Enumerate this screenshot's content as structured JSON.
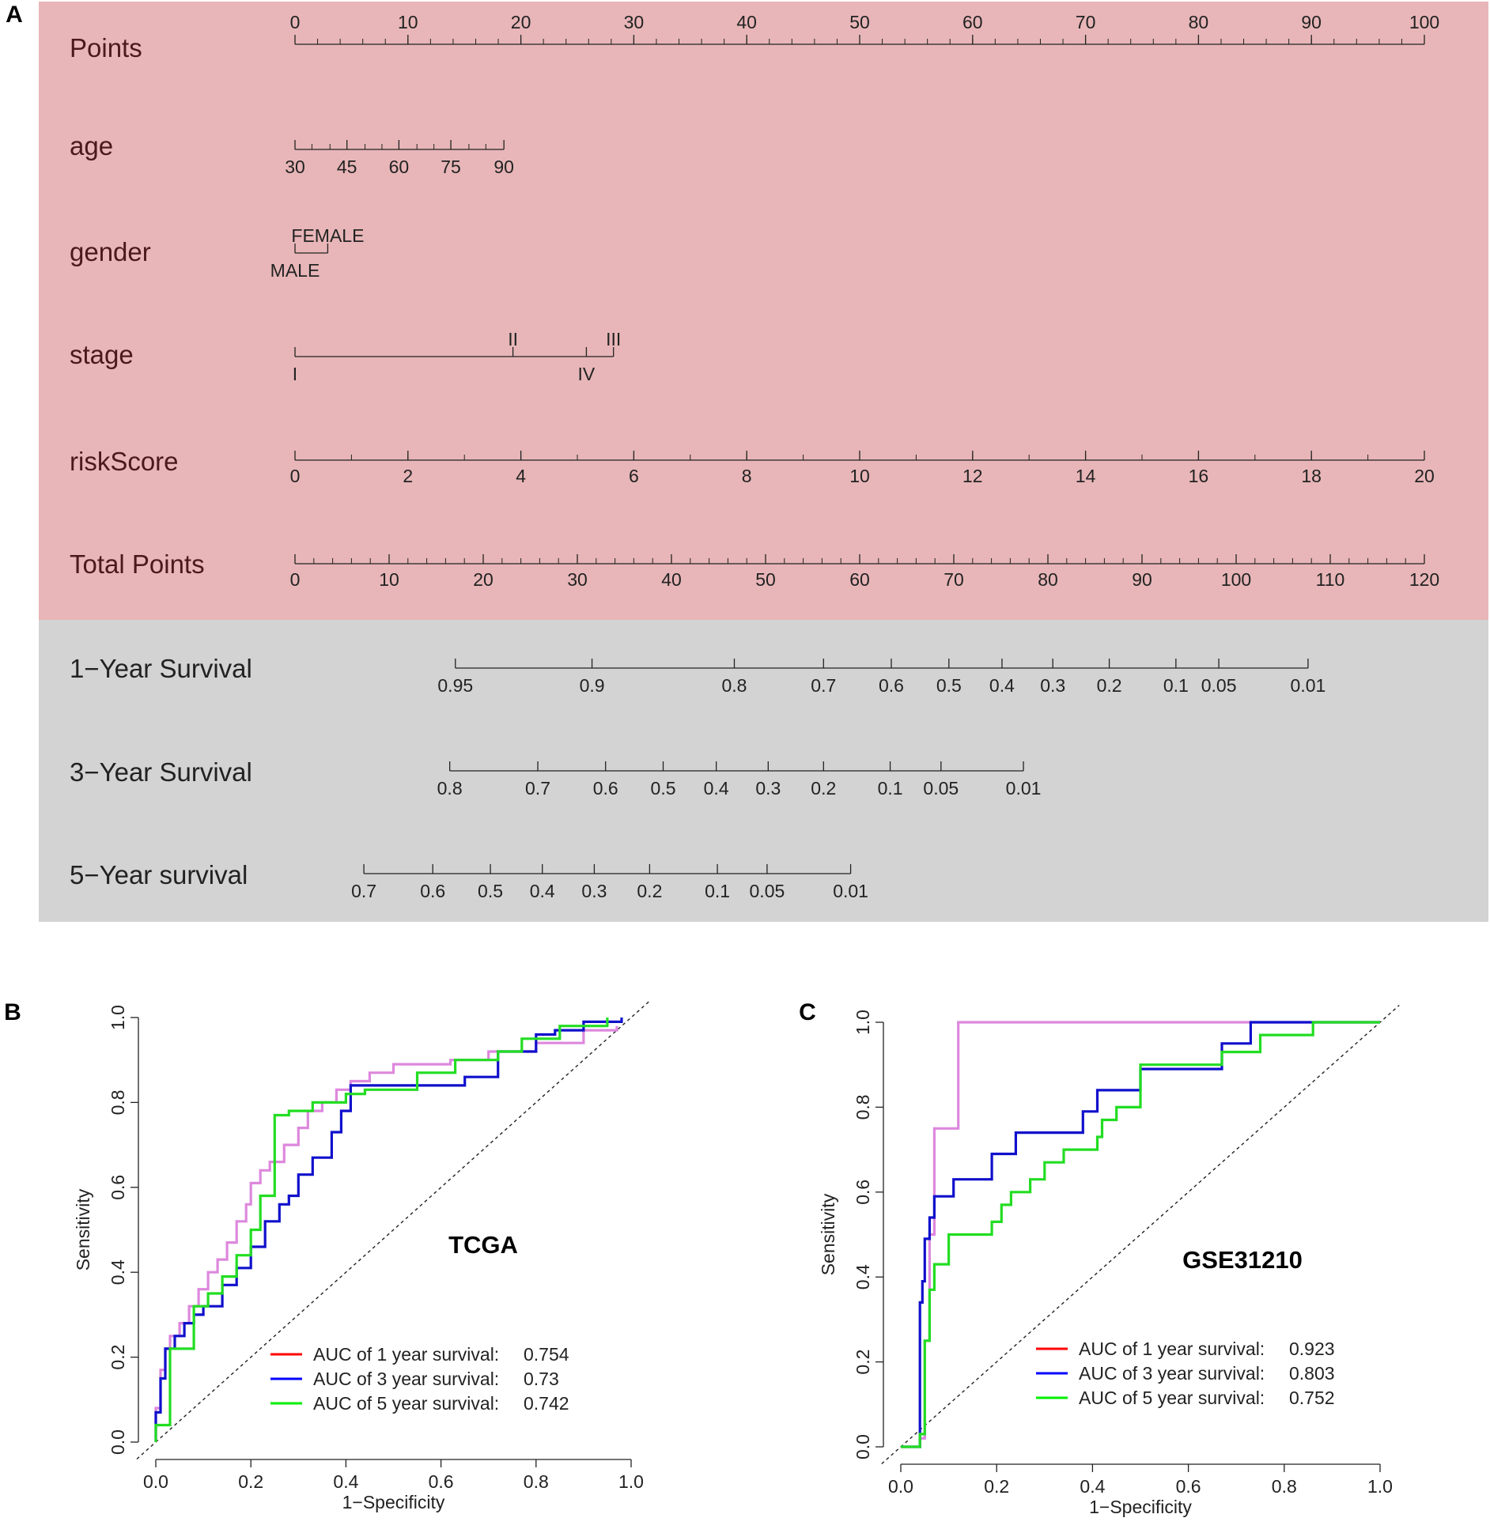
{
  "chart_data": [
    {
      "panel": "A",
      "type": "table",
      "description_type": "nomogram",
      "panel_label": "A",
      "colors": {
        "predictors_background": "#e8b6b8",
        "survival_background": "#d3d3d3",
        "row_label": "#4a1a1a",
        "axis": "#222222"
      },
      "rows": [
        {
          "id": "points",
          "label": "Points",
          "section": "predictors",
          "scale": {
            "from": 0,
            "to": 100
          },
          "ticks": [
            0,
            10,
            20,
            30,
            40,
            50,
            60,
            70,
            80,
            90,
            100
          ],
          "minor_step": 2,
          "label_side": "above",
          "tick_labels": [
            "0",
            "10",
            "20",
            "30",
            "40",
            "50",
            "60",
            "70",
            "80",
            "90",
            "100"
          ]
        },
        {
          "id": "age",
          "label": "age",
          "section": "predictors",
          "ticks": [
            {
              "value": "30",
              "points": 0
            },
            {
              "value": "45",
              "points": 4.6
            },
            {
              "value": "60",
              "points": 9.2
            },
            {
              "value": "75",
              "points": 13.8
            },
            {
              "value": "90",
              "points": 18.5
            }
          ],
          "minor_points": [
            1.5,
            3.1,
            6.2,
            7.7,
            10.8,
            12.3,
            15.4,
            16.9
          ],
          "label_side": "below"
        },
        {
          "id": "gender",
          "label": "gender",
          "section": "predictors",
          "ticks": [
            {
              "value": "FEMALE",
              "points": 2.9,
              "side": "above"
            },
            {
              "value": "MALE",
              "points": 0,
              "side": "below"
            }
          ]
        },
        {
          "id": "stage",
          "label": "stage",
          "section": "predictors",
          "ticks": [
            {
              "value": "I",
              "points": 0,
              "side": "below"
            },
            {
              "value": "II",
              "points": 19.3,
              "side": "above"
            },
            {
              "value": "III",
              "points": 28.2,
              "side": "above"
            },
            {
              "value": "IV",
              "points": 25.8,
              "side": "below"
            }
          ]
        },
        {
          "id": "riskscore",
          "label": "riskScore",
          "section": "predictors",
          "scale": {
            "from": 0,
            "to": 20
          },
          "ticks": [
            0,
            2,
            4,
            6,
            8,
            10,
            12,
            14,
            16,
            18,
            20
          ],
          "minor_step": 1,
          "label_side": "below",
          "tick_labels": [
            "0",
            "2",
            "4",
            "6",
            "8",
            "10",
            "12",
            "14",
            "16",
            "18",
            "20"
          ]
        },
        {
          "id": "total-points",
          "label": "Total Points",
          "section": "predictors",
          "scale": {
            "from": 0,
            "to": 120
          },
          "ticks": [
            0,
            10,
            20,
            30,
            40,
            50,
            60,
            70,
            80,
            90,
            100,
            110,
            120
          ],
          "minor_step": 2,
          "label_side": "below",
          "tick_labels": [
            "0",
            "10",
            "20",
            "30",
            "40",
            "50",
            "60",
            "70",
            "80",
            "90",
            "100",
            "110",
            "120"
          ]
        },
        {
          "id": "surv1",
          "label": "1−Year Survival",
          "section": "survival",
          "total_points_per_100": true,
          "ticks": [
            {
              "value": "0.95",
              "points": 14.2
            },
            {
              "value": "0.9",
              "points": 26.3
            },
            {
              "value": "0.8",
              "points": 38.9
            },
            {
              "value": "0.7",
              "points": 46.8
            },
            {
              "value": "0.6",
              "points": 52.8
            },
            {
              "value": "0.5",
              "points": 57.9
            },
            {
              "value": "0.4",
              "points": 62.6
            },
            {
              "value": "0.3",
              "points": 67.1
            },
            {
              "value": "0.2",
              "points": 72.1
            },
            {
              "value": "0.1",
              "points": 78.0
            },
            {
              "value": "0.05",
              "points": 81.8
            },
            {
              "value": "0.01",
              "points": 89.7
            }
          ]
        },
        {
          "id": "surv3",
          "label": "3−Year Survival",
          "section": "survival",
          "ticks": [
            {
              "value": "0.8",
              "points": 13.7
            },
            {
              "value": "0.7",
              "points": 21.5
            },
            {
              "value": "0.6",
              "points": 27.5
            },
            {
              "value": "0.5",
              "points": 32.6
            },
            {
              "value": "0.4",
              "points": 37.3
            },
            {
              "value": "0.3",
              "points": 41.9
            },
            {
              "value": "0.2",
              "points": 46.8
            },
            {
              "value": "0.1",
              "points": 52.7
            },
            {
              "value": "0.05",
              "points": 57.2
            },
            {
              "value": "0.01",
              "points": 64.5
            }
          ]
        },
        {
          "id": "surv5",
          "label": "5−Year survival",
          "section": "survival",
          "ticks": [
            {
              "value": "0.7",
              "points": 6.1
            },
            {
              "value": "0.6",
              "points": 12.2
            },
            {
              "value": "0.5",
              "points": 17.3
            },
            {
              "value": "0.4",
              "points": 21.9
            },
            {
              "value": "0.3",
              "points": 26.5
            },
            {
              "value": "0.2",
              "points": 31.4
            },
            {
              "value": "0.1",
              "points": 37.4
            },
            {
              "value": "0.05",
              "points": 41.8
            },
            {
              "value": "0.01",
              "points": 49.2
            }
          ]
        }
      ]
    },
    {
      "panel": "B",
      "type": "line",
      "panel_label": "B",
      "title": "TCGA",
      "xlabel": "1−Specificity",
      "ylabel": "Sensitivity",
      "xlim": [
        0,
        1
      ],
      "ylim": [
        0,
        1
      ],
      "xticks": [
        "0.0",
        "0.2",
        "0.4",
        "0.6",
        "0.8",
        "1.0"
      ],
      "yticks": [
        "0.0",
        "0.2",
        "0.4",
        "0.6",
        "0.8",
        "1.0"
      ],
      "reference_line": "dashed diagonal",
      "legend": {
        "position": "bottom-right",
        "entries": [
          {
            "label": "AUC of 1 year survival:",
            "value": "0.754",
            "color": "#ff0000"
          },
          {
            "label": "AUC of 3 year survival:",
            "value": "0.73",
            "color": "#0000ff"
          },
          {
            "label": "AUC of 5 year survival:",
            "value": "0.742",
            "color": "#00ee00"
          }
        ]
      },
      "series": [
        {
          "name": "1 year",
          "color": "#dd88dd",
          "step": true,
          "x": [
            0,
            0,
            0.01,
            0.01,
            0.02,
            0.02,
            0.03,
            0.03,
            0.05,
            0.05,
            0.07,
            0.07,
            0.09,
            0.09,
            0.11,
            0.11,
            0.13,
            0.13,
            0.15,
            0.15,
            0.17,
            0.17,
            0.19,
            0.19,
            0.2,
            0.2,
            0.22,
            0.22,
            0.24,
            0.24,
            0.27,
            0.27,
            0.3,
            0.3,
            0.32,
            0.32,
            0.35,
            0.35,
            0.38,
            0.38,
            0.41,
            0.41,
            0.45,
            0.45,
            0.5,
            0.5,
            0.56,
            0.56,
            0.62,
            0.62,
            0.7,
            0.7,
            0.8,
            0.8,
            0.9,
            0.9,
            0.97,
            0.97
          ],
          "y": [
            0,
            0.08,
            0.08,
            0.17,
            0.17,
            0.22,
            0.22,
            0.25,
            0.25,
            0.28,
            0.28,
            0.32,
            0.32,
            0.36,
            0.36,
            0.4,
            0.4,
            0.43,
            0.43,
            0.47,
            0.47,
            0.52,
            0.52,
            0.56,
            0.56,
            0.61,
            0.61,
            0.64,
            0.64,
            0.66,
            0.66,
            0.7,
            0.7,
            0.74,
            0.74,
            0.78,
            0.78,
            0.8,
            0.8,
            0.83,
            0.83,
            0.85,
            0.85,
            0.87,
            0.87,
            0.89,
            0.89,
            0.89,
            0.89,
            0.9,
            0.9,
            0.92,
            0.92,
            0.94,
            0.94,
            0.97,
            0.97,
            0.98
          ]
        },
        {
          "name": "3 year",
          "color": "#1010cc",
          "step": true,
          "x": [
            0,
            0,
            0.01,
            0.01,
            0.02,
            0.02,
            0.04,
            0.04,
            0.06,
            0.06,
            0.08,
            0.08,
            0.1,
            0.1,
            0.14,
            0.14,
            0.17,
            0.17,
            0.2,
            0.2,
            0.23,
            0.23,
            0.26,
            0.26,
            0.28,
            0.28,
            0.3,
            0.3,
            0.33,
            0.33,
            0.37,
            0.37,
            0.39,
            0.39,
            0.41,
            0.41,
            0.47,
            0.47,
            0.55,
            0.55,
            0.65,
            0.65,
            0.72,
            0.72,
            0.8,
            0.8,
            0.84,
            0.84,
            0.9,
            0.9,
            0.98,
            0.98
          ],
          "y": [
            0,
            0.07,
            0.07,
            0.15,
            0.15,
            0.22,
            0.22,
            0.25,
            0.25,
            0.28,
            0.28,
            0.3,
            0.3,
            0.32,
            0.32,
            0.37,
            0.37,
            0.41,
            0.41,
            0.46,
            0.46,
            0.52,
            0.52,
            0.56,
            0.56,
            0.58,
            0.58,
            0.63,
            0.63,
            0.67,
            0.67,
            0.73,
            0.73,
            0.78,
            0.78,
            0.84,
            0.84,
            0.84,
            0.84,
            0.84,
            0.84,
            0.86,
            0.86,
            0.92,
            0.92,
            0.96,
            0.96,
            0.97,
            0.97,
            0.99,
            0.99,
            1.0
          ]
        },
        {
          "name": "5 year",
          "color": "#22dd22",
          "step": true,
          "x": [
            0,
            0,
            0.03,
            0.03,
            0.08,
            0.08,
            0.11,
            0.11,
            0.14,
            0.14,
            0.17,
            0.17,
            0.2,
            0.2,
            0.22,
            0.22,
            0.25,
            0.25,
            0.28,
            0.28,
            0.33,
            0.33,
            0.4,
            0.4,
            0.44,
            0.44,
            0.55,
            0.55,
            0.63,
            0.63,
            0.72,
            0.72,
            0.77,
            0.77,
            0.85,
            0.85,
            0.95,
            0.95
          ],
          "y": [
            0,
            0.04,
            0.04,
            0.22,
            0.22,
            0.32,
            0.32,
            0.35,
            0.35,
            0.39,
            0.39,
            0.44,
            0.44,
            0.5,
            0.5,
            0.58,
            0.58,
            0.77,
            0.77,
            0.78,
            0.78,
            0.8,
            0.8,
            0.82,
            0.82,
            0.83,
            0.83,
            0.87,
            0.87,
            0.9,
            0.9,
            0.92,
            0.92,
            0.95,
            0.95,
            0.98,
            0.98,
            1.0
          ]
        }
      ]
    },
    {
      "panel": "C",
      "type": "line",
      "panel_label": "C",
      "title": "GSE31210",
      "xlabel": "1−Specificity",
      "ylabel": "Sensitivity",
      "xlim": [
        0,
        1
      ],
      "ylim": [
        0,
        1
      ],
      "xticks": [
        "0.0",
        "0.2",
        "0.4",
        "0.6",
        "0.8",
        "1.0"
      ],
      "yticks": [
        "0.0",
        "0.2",
        "0.4",
        "0.6",
        "0.8",
        "1.0"
      ],
      "reference_line": "dashed diagonal",
      "legend": {
        "position": "bottom-right",
        "entries": [
          {
            "label": "AUC of 1 year survival:",
            "value": "0.923",
            "color": "#ff0000"
          },
          {
            "label": "AUC of 3 year survival:",
            "value": "0.803",
            "color": "#0000ff"
          },
          {
            "label": "AUC of 5 year survival:",
            "value": "0.752",
            "color": "#00ee00"
          }
        ]
      },
      "series": [
        {
          "name": "1 year",
          "color": "#dd88dd",
          "step": true,
          "x": [
            0,
            0.04,
            0.04,
            0.05,
            0.05,
            0.06,
            0.06,
            0.07,
            0.07,
            0.12,
            0.12,
            1.0
          ],
          "y": [
            0,
            0,
            0.02,
            0.02,
            0.25,
            0.25,
            0.5,
            0.5,
            0.75,
            0.75,
            1.0,
            1.0
          ]
        },
        {
          "name": "3 year",
          "color": "#1010cc",
          "step": true,
          "x": [
            0,
            0.04,
            0.04,
            0.045,
            0.045,
            0.05,
            0.05,
            0.06,
            0.06,
            0.07,
            0.07,
            0.11,
            0.11,
            0.19,
            0.19,
            0.24,
            0.24,
            0.38,
            0.38,
            0.41,
            0.41,
            0.5,
            0.5,
            0.67,
            0.67,
            0.73,
            0.73,
            1.0
          ],
          "y": [
            0,
            0,
            0.34,
            0.34,
            0.39,
            0.39,
            0.49,
            0.49,
            0.54,
            0.54,
            0.59,
            0.59,
            0.63,
            0.63,
            0.69,
            0.69,
            0.74,
            0.74,
            0.79,
            0.79,
            0.84,
            0.84,
            0.89,
            0.89,
            0.95,
            0.95,
            1.0,
            1.0
          ]
        },
        {
          "name": "5 year",
          "color": "#22dd22",
          "step": true,
          "x": [
            0,
            0.04,
            0.04,
            0.05,
            0.05,
            0.06,
            0.06,
            0.07,
            0.07,
            0.1,
            0.1,
            0.19,
            0.19,
            0.21,
            0.21,
            0.23,
            0.23,
            0.27,
            0.27,
            0.3,
            0.3,
            0.34,
            0.34,
            0.41,
            0.41,
            0.42,
            0.42,
            0.45,
            0.45,
            0.5,
            0.5,
            0.67,
            0.67,
            0.75,
            0.75,
            0.86,
            0.86,
            1.0
          ],
          "y": [
            0,
            0,
            0.03,
            0.03,
            0.25,
            0.25,
            0.37,
            0.37,
            0.43,
            0.43,
            0.5,
            0.5,
            0.53,
            0.53,
            0.57,
            0.57,
            0.6,
            0.6,
            0.63,
            0.63,
            0.67,
            0.67,
            0.7,
            0.7,
            0.73,
            0.73,
            0.77,
            0.77,
            0.8,
            0.8,
            0.9,
            0.9,
            0.93,
            0.93,
            0.97,
            0.97,
            1.0,
            1.0
          ]
        }
      ]
    }
  ]
}
